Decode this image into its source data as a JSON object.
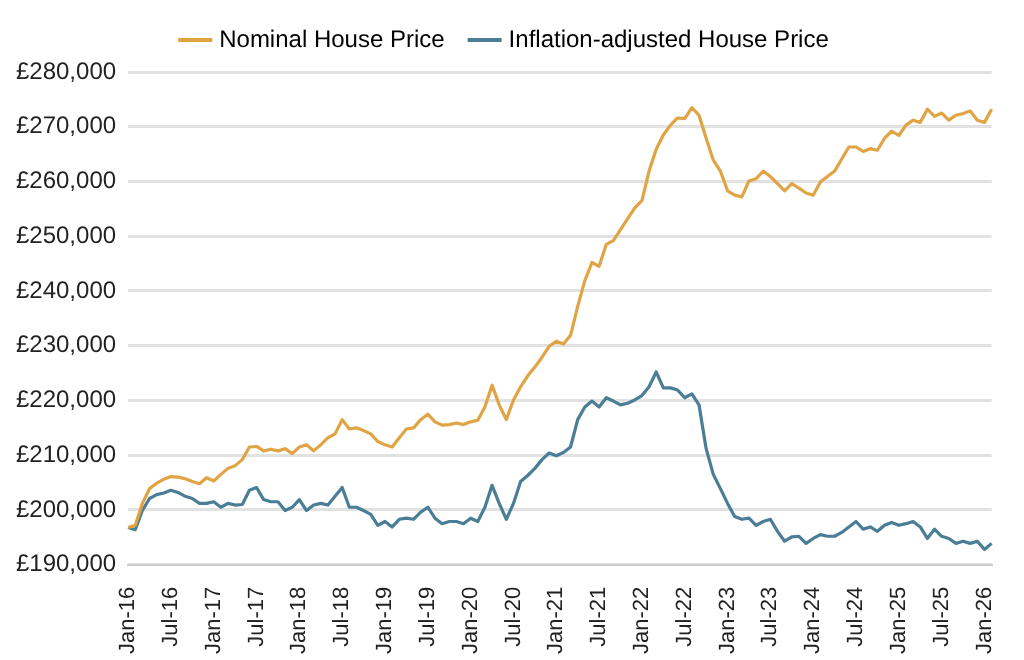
{
  "chart_data": {
    "type": "line",
    "categories": [
      "Jan-16",
      null,
      null,
      null,
      null,
      null,
      "Jul-16",
      null,
      null,
      null,
      null,
      null,
      "Jan-17",
      null,
      null,
      null,
      null,
      null,
      "Jul-17",
      null,
      null,
      null,
      null,
      null,
      "Jan-18",
      null,
      null,
      null,
      null,
      null,
      "Jul-18",
      null,
      null,
      null,
      null,
      null,
      "Jan-19",
      null,
      null,
      null,
      null,
      null,
      "Jul-19",
      null,
      null,
      null,
      null,
      null,
      "Jan-20",
      null,
      null,
      null,
      null,
      null,
      "Jul-20",
      null,
      null,
      null,
      null,
      null,
      "Jan-21",
      null,
      null,
      null,
      null,
      null,
      "Jul-21",
      null,
      null,
      null,
      null,
      null,
      "Jan-22",
      null,
      null,
      null,
      null,
      null,
      "Jul-22",
      null,
      null,
      null,
      null,
      null,
      "Jan-23",
      null,
      null,
      null,
      null,
      null,
      "Jul-23",
      null,
      null,
      null,
      null,
      null,
      "Jan-24",
      null,
      null,
      null,
      null,
      null,
      "Jul-24",
      null,
      null,
      null,
      null,
      null,
      "Jan-25",
      null,
      null,
      null,
      null,
      null,
      "Jul-25",
      null,
      null,
      null,
      null,
      null,
      "Jan-26",
      null
    ],
    "series": [
      {
        "name": "Nominal House Price",
        "color": "#e0a445",
        "values": [
          196800,
          197200,
          201200,
          203900,
          204900,
          205600,
          206100,
          206000,
          205700,
          205200,
          204800,
          205900,
          205300,
          206500,
          207600,
          208100,
          209200,
          211500,
          211600,
          210800,
          211100,
          210800,
          211200,
          210300,
          211500,
          211900,
          210800,
          211900,
          213200,
          213900,
          216500,
          214800,
          215000,
          214500,
          213900,
          212500,
          211900,
          211500,
          213200,
          214800,
          215000,
          216500,
          217500,
          216100,
          215500,
          215600,
          215900,
          215600,
          216100,
          216400,
          218800,
          222800,
          219200,
          216500,
          220100,
          222500,
          224500,
          226100,
          227900,
          229900,
          230800,
          230300,
          231900,
          237200,
          241900,
          245200,
          244500,
          248500,
          249200,
          251200,
          253200,
          255200,
          256500,
          261900,
          265900,
          268500,
          270300,
          271600,
          271500,
          273500,
          272100,
          267900,
          263900,
          261900,
          258300,
          257500,
          257200,
          260100,
          260500,
          261900,
          260900,
          259600,
          258300,
          259600,
          258800,
          257900,
          257500,
          259900,
          260900,
          261900,
          264100,
          266300,
          266300,
          265500,
          266000,
          265700,
          267900,
          269200,
          268400,
          270300,
          271200,
          270800,
          273200,
          271900,
          272500,
          271200,
          272100,
          272400,
          272900,
          271200,
          270800,
          273200
        ]
      },
      {
        "name": "Inflation-adjusted House Price",
        "color": "#4a7d96",
        "values": [
          196800,
          196400,
          199900,
          202100,
          202800,
          203100,
          203600,
          203200,
          202500,
          202100,
          201200,
          201200,
          201500,
          200500,
          201200,
          200900,
          201000,
          203600,
          204100,
          201900,
          201500,
          201500,
          199900,
          200500,
          201900,
          199900,
          200900,
          201200,
          200900,
          202500,
          204100,
          200500,
          200500,
          199900,
          199200,
          197200,
          197900,
          196900,
          198300,
          198500,
          198300,
          199600,
          200500,
          198500,
          197500,
          197900,
          197900,
          197500,
          198500,
          197900,
          200500,
          204500,
          201200,
          198300,
          201200,
          205200,
          206300,
          207600,
          209200,
          210400,
          209900,
          210500,
          211500,
          216500,
          218800,
          219900,
          218800,
          220500,
          219900,
          219200,
          219500,
          220100,
          220900,
          222500,
          225200,
          222300,
          222300,
          221900,
          220500,
          221200,
          219200,
          211200,
          206500,
          203900,
          201200,
          198800,
          198300,
          198500,
          197200,
          197900,
          198300,
          196100,
          194300,
          195100,
          195200,
          193900,
          194800,
          195500,
          195200,
          195200,
          195900,
          196900,
          197900,
          196500,
          196900,
          196100,
          197200,
          197700,
          197200,
          197500,
          197900,
          196900,
          194800,
          196500,
          195200,
          194800,
          193900,
          194300,
          193900,
          194300,
          192800,
          193900
        ]
      }
    ],
    "ylim": [
      190000,
      280000
    ],
    "yticks": [
      {
        "value": 190000,
        "label": "£190,000"
      },
      {
        "value": 200000,
        "label": "£200,000"
      },
      {
        "value": 210000,
        "label": "£210,000"
      },
      {
        "value": 220000,
        "label": "£220,000"
      },
      {
        "value": 230000,
        "label": "£230,000"
      },
      {
        "value": 240000,
        "label": "£240,000"
      },
      {
        "value": 250000,
        "label": "£250,000"
      },
      {
        "value": 260000,
        "label": "£260,000"
      },
      {
        "value": 270000,
        "label": "£270,000"
      },
      {
        "value": 280000,
        "label": "£280,000"
      }
    ],
    "grid": "y",
    "legend": "top",
    "marker": "none",
    "line_style": "solid"
  }
}
